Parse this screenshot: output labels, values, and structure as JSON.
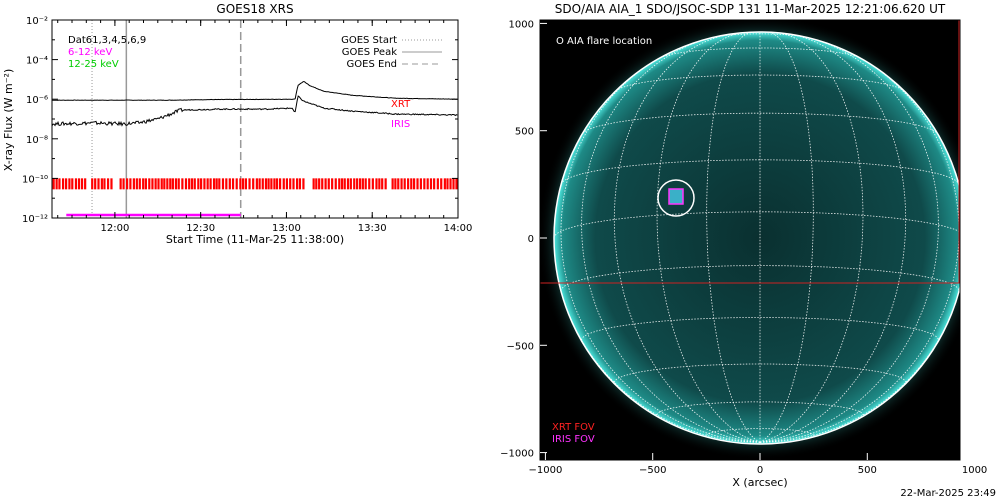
{
  "goes": {
    "title": "GOES18 XRS",
    "ylabel": "X-ray Flux (W m⁻²)",
    "xlabel": "Start Time (11-Mar-25 11:38:00)",
    "dets": "Dat61,3,4,5,6,9",
    "band_low": "6-12 keV",
    "band_high": "12-25 keV",
    "legend": [
      "GOES Start",
      "GOES Peak",
      "GOES End"
    ],
    "xrt_label": "XRT",
    "iris_label": "IRIS",
    "colors": {
      "low": "#ff00ff",
      "high": "#00dd00",
      "xrt": "#ff0000",
      "iris": "#ff00ff"
    }
  },
  "aia": {
    "title": "SDO/AIA AIA_1 SDO/JSOC-SDP 131 11-Mar-2025 12:21:06.620 UT",
    "flare_label": "O AIA flare location",
    "xrt_fov": "XRT FOV",
    "iris_fov": "IRIS FOV",
    "xlabel": "X (arcsec)",
    "colors": {
      "disk": "#0c3f3f",
      "limb": "#44d8d2",
      "xrt": "#cc2222",
      "iris": "#ff33ff",
      "flare": "#00cccc"
    }
  },
  "timestamp": "22-Mar-2025 23:49",
  "chart_data": [
    {
      "type": "line",
      "title": "GOES18 XRS",
      "xlabel": "Start Time (11-Mar-25 11:38:00)",
      "ylabel": "X-ray Flux (W m⁻²)",
      "x_ticks": [
        "12:00",
        "12:30",
        "13:00",
        "13:30",
        "14:00"
      ],
      "y_ticks": [
        "10⁻¹²",
        "10⁻¹⁰",
        "10⁻⁸",
        "10⁻⁶",
        "10⁻⁴",
        "10⁻²"
      ],
      "y_log_exp_range": [
        -12,
        -2
      ],
      "x_range_minutes_from_1138": [
        0,
        142
      ],
      "series": [
        {
          "name": "",
          "x": [
            0,
            40,
            55,
            85,
            86,
            88,
            90,
            95,
            105,
            120,
            142
          ],
          "log_flux": [
            -6.05,
            -6.05,
            -6.02,
            -6.0,
            -5.3,
            -5.1,
            -5.3,
            -5.6,
            -5.8,
            -5.95,
            -6.0
          ]
        },
        {
          "name": "",
          "x": [
            0,
            15,
            25,
            30,
            37,
            45,
            60,
            75,
            84,
            85,
            86,
            88,
            95,
            105,
            120,
            142
          ],
          "log_flux": [
            -7.25,
            -7.2,
            -7.25,
            -7.2,
            -7.0,
            -6.55,
            -6.5,
            -6.5,
            -6.45,
            -6.7,
            -5.85,
            -6.1,
            -6.45,
            -6.6,
            -6.75,
            -6.8
          ]
        }
      ],
      "markers": {
        "GOES Start": 14,
        "GOES Peak": 26,
        "GOES End": 66
      },
      "xrt_coverage_log": -10.3,
      "iris_coverage": {
        "x_range": [
          5,
          66
        ],
        "log_flux": -11.85
      }
    },
    {
      "type": "scatter",
      "title": "SDO/AIA AIA_1 SDO/JSOC-SDP 131 11-Mar-2025 12:21:06.620 UT",
      "xlabel": "X (arcsec)",
      "ylabel": "",
      "xlim": [
        -1100,
        1100
      ],
      "ylim": [
        -1100,
        1100
      ],
      "x_ticks": [
        -1000,
        -500,
        0,
        500,
        1000
      ],
      "y_ticks": [
        -1000,
        -500,
        0,
        500,
        1000
      ],
      "flare_location": [
        -430,
        200
      ],
      "iris_fov": [
        -470,
        170,
        -390,
        240
      ],
      "xrt_fov": [
        -1100,
        -220,
        1000,
        1100
      ]
    }
  ]
}
